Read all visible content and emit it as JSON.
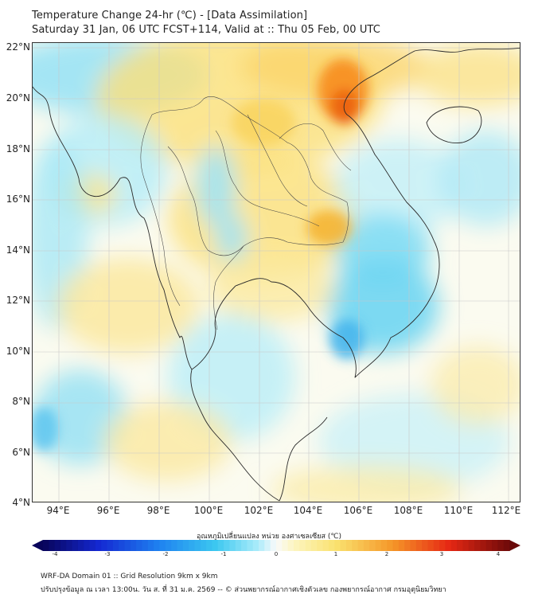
{
  "title_line1": "Temperature Change 24-hr (℃) - [Data Assimilation]",
  "title_line2": "Saturday 31 Jan, 06 UTC FCST+114, Valid at :: Thu 05 Feb, 00 UTC",
  "lat_labels": [
    "22°N",
    "20°N",
    "18°N",
    "16°N",
    "14°N",
    "12°N",
    "10°N",
    "8°N",
    "6°N",
    "4°N"
  ],
  "lon_labels": [
    "94°E",
    "96°E",
    "98°E",
    "100°E",
    "102°E",
    "104°E",
    "106°E",
    "108°E",
    "110°E",
    "112°E"
  ],
  "colorbar": {
    "title": "อุณหภูมิเปลี่ยนแปลง หน่วย องศาเซลเซียส (℃)",
    "ticks": [
      "-4",
      "-3",
      "-2",
      "-1",
      "0",
      "1",
      "2",
      "3",
      "4"
    ],
    "min": -4,
    "max": 4
  },
  "footer_line1": "WRF-DA Domain 01 :: Grid Resolution 9km x 9km",
  "footer_line2": "ปรับปรุงข้อมูล ณ เวลา 13:00น. วัน ส. ที่ 31 ม.ค. 2569 -- © ส่วนพยากรณ์อากาศเชิงตัวเลข กองพยากรณ์อากาศ กรมอุตุนิยมวิทยา"
}
